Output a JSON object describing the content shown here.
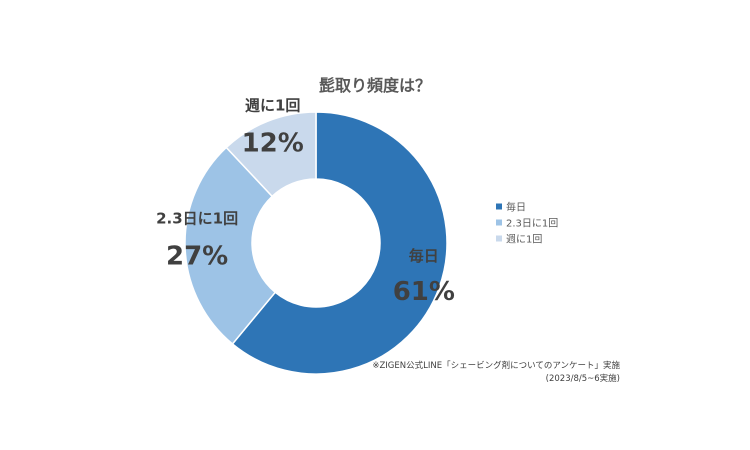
{
  "chart_data": {
    "type": "pie",
    "subtype": "donut",
    "title": "髭取り頻度は？",
    "categories": [
      "毎日",
      "2.3日に1回",
      "週に1回"
    ],
    "values": [
      61,
      27,
      12
    ],
    "value_labels": [
      "61%",
      "27%",
      "12%"
    ],
    "colors": [
      "#2E75B6",
      "#9DC3E6",
      "#C9D9EC"
    ],
    "legend": {
      "position": "right",
      "entries": [
        "毎日",
        "2.3日に1回",
        "週に1回"
      ]
    }
  },
  "source_note": {
    "line1": "※ZIGEN公式LINE「シェービング剤についてのアンケート」実施",
    "line2": "(2023/8/5~6実施)"
  }
}
